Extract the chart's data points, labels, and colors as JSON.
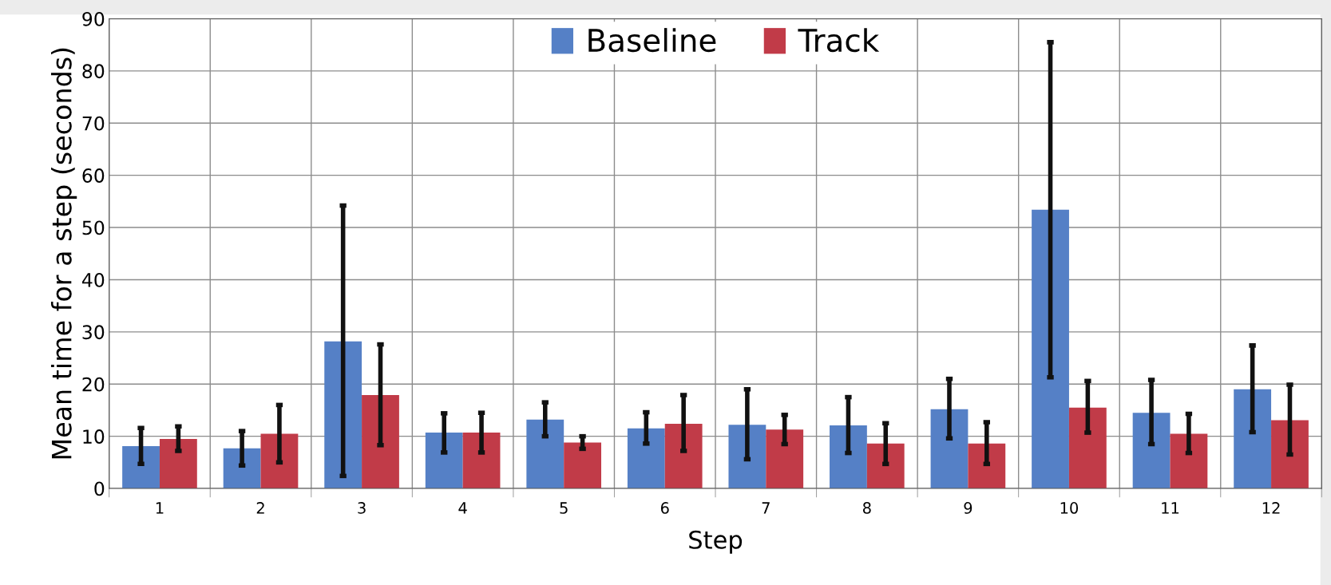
{
  "chart_data": {
    "type": "bar",
    "xlabel": "Step",
    "ylabel": "Mean time for a step (seconds)",
    "categories": [
      "1",
      "2",
      "3",
      "4",
      "5",
      "6",
      "7",
      "8",
      "9",
      "10",
      "11",
      "12"
    ],
    "series": [
      {
        "name": "Baseline",
        "color": "#5580c6",
        "values": [
          8.1,
          7.7,
          28.2,
          10.7,
          13.2,
          11.5,
          12.2,
          12.1,
          15.2,
          53.4,
          14.5,
          19.0
        ],
        "errors": [
          [
            4.7,
            11.6
          ],
          [
            4.4,
            11.0
          ],
          [
            2.4,
            54.2
          ],
          [
            6.9,
            14.4
          ],
          [
            10.0,
            16.5
          ],
          [
            8.6,
            14.6
          ],
          [
            5.6,
            19.0
          ],
          [
            6.8,
            17.5
          ],
          [
            9.6,
            21.0
          ],
          [
            21.3,
            85.5
          ],
          [
            8.5,
            20.8
          ],
          [
            10.8,
            27.4
          ]
        ]
      },
      {
        "name": "Track",
        "color": "#c13b48",
        "values": [
          9.5,
          10.5,
          17.9,
          10.7,
          8.8,
          12.4,
          11.3,
          8.6,
          8.6,
          15.5,
          10.5,
          13.1
        ],
        "errors": [
          [
            7.2,
            11.9
          ],
          [
            5.0,
            16.0
          ],
          [
            8.3,
            27.6
          ],
          [
            6.9,
            14.5
          ],
          [
            7.6,
            10.0
          ],
          [
            7.2,
            17.9
          ],
          [
            8.5,
            14.1
          ],
          [
            4.7,
            12.5
          ],
          [
            4.7,
            12.7
          ],
          [
            10.7,
            20.6
          ],
          [
            6.8,
            14.3
          ],
          [
            6.5,
            19.9
          ]
        ]
      }
    ],
    "ylim": [
      0,
      90
    ],
    "yticks": [
      0,
      10,
      20,
      30,
      40,
      50,
      60,
      70,
      80,
      90
    ],
    "grid": true,
    "legend": "top"
  }
}
